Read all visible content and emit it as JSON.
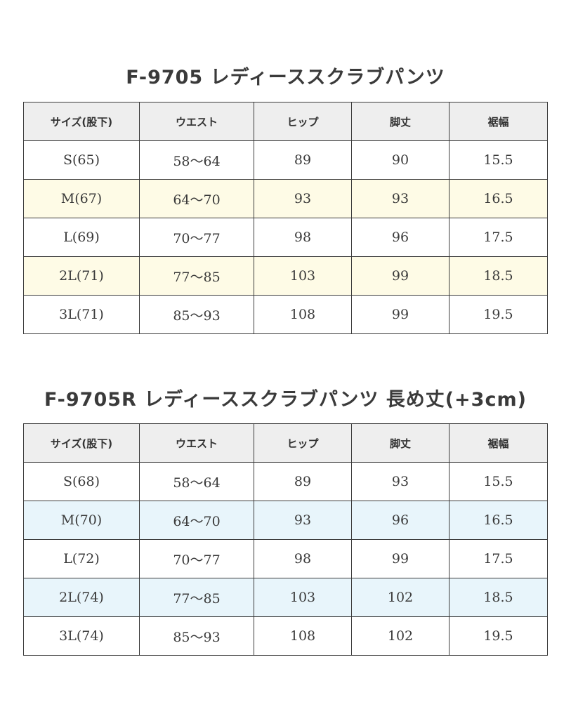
{
  "colors": {
    "header_bg": "#eeeeee",
    "border": "#3a3a3a",
    "table1_alt_row": "#fefbe6",
    "table2_alt_row": "#e8f5fb"
  },
  "tables": [
    {
      "title": "F-9705 レディーススクラブパンツ",
      "headers": [
        "サイズ(股下)",
        "ウエスト",
        "ヒップ",
        "脚丈",
        "裾幅"
      ],
      "rows": [
        [
          "S(65)",
          "58〜64",
          "89",
          "90",
          "15.5"
        ],
        [
          "M(67)",
          "64〜70",
          "93",
          "93",
          "16.5"
        ],
        [
          "L(69)",
          "70〜77",
          "98",
          "96",
          "17.5"
        ],
        [
          "2L(71)",
          "77〜85",
          "103",
          "99",
          "18.5"
        ],
        [
          "3L(71)",
          "85〜93",
          "108",
          "99",
          "19.5"
        ]
      ]
    },
    {
      "title": "F-9705R レディーススクラブパンツ 長め丈(+3cm)",
      "headers": [
        "サイズ(股下)",
        "ウエスト",
        "ヒップ",
        "脚丈",
        "裾幅"
      ],
      "rows": [
        [
          "S(68)",
          "58〜64",
          "89",
          "93",
          "15.5"
        ],
        [
          "M(70)",
          "64〜70",
          "93",
          "96",
          "16.5"
        ],
        [
          "L(72)",
          "70〜77",
          "98",
          "99",
          "17.5"
        ],
        [
          "2L(74)",
          "77〜85",
          "103",
          "102",
          "18.5"
        ],
        [
          "3L(74)",
          "85〜93",
          "108",
          "102",
          "19.5"
        ]
      ]
    }
  ]
}
